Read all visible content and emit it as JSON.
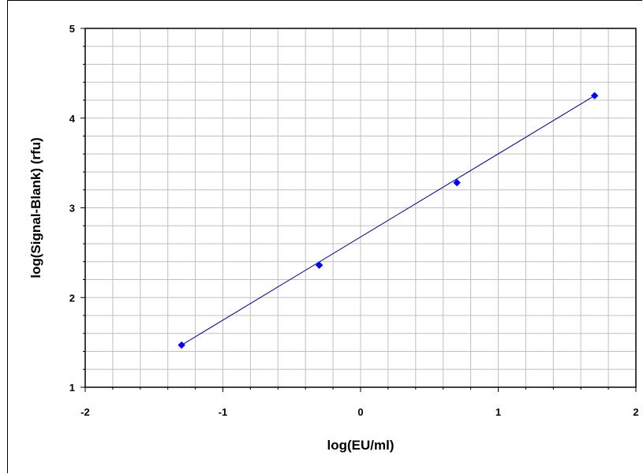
{
  "chart_data": {
    "type": "scatter",
    "title": "",
    "xlabel": "log(EU/ml)",
    "ylabel": "log(Signal-Blank) (rfu)",
    "xlim": [
      -2,
      2
    ],
    "ylim": [
      1,
      5
    ],
    "x_ticks": [
      -2,
      -1,
      0,
      1,
      2
    ],
    "y_ticks": [
      1,
      2,
      3,
      4,
      5
    ],
    "x_tick_labels": [
      "-2",
      "-1",
      "0",
      "1",
      "2"
    ],
    "y_tick_labels": [
      "1",
      "2",
      "3",
      "4",
      "5"
    ],
    "grid": true,
    "x_minor_step": 0.2,
    "y_minor_step": 0.2,
    "legend": "none",
    "series": [
      {
        "points": [
          {
            "x": -1.3,
            "y": 1.47
          },
          {
            "x": -0.3,
            "y": 2.36
          },
          {
            "x": 0.7,
            "y": 3.28
          },
          {
            "x": 1.7,
            "y": 4.25
          }
        ],
        "marker_color": "#0000ff",
        "marker": "diamond"
      }
    ],
    "fit_line": {
      "from": {
        "x": -1.3,
        "y": 1.47
      },
      "to": {
        "x": 1.7,
        "y": 4.25
      },
      "color": "#000080"
    },
    "colors": {
      "grid": "#c0c0c0",
      "axes": "#000000",
      "background": "#ffffff"
    }
  }
}
